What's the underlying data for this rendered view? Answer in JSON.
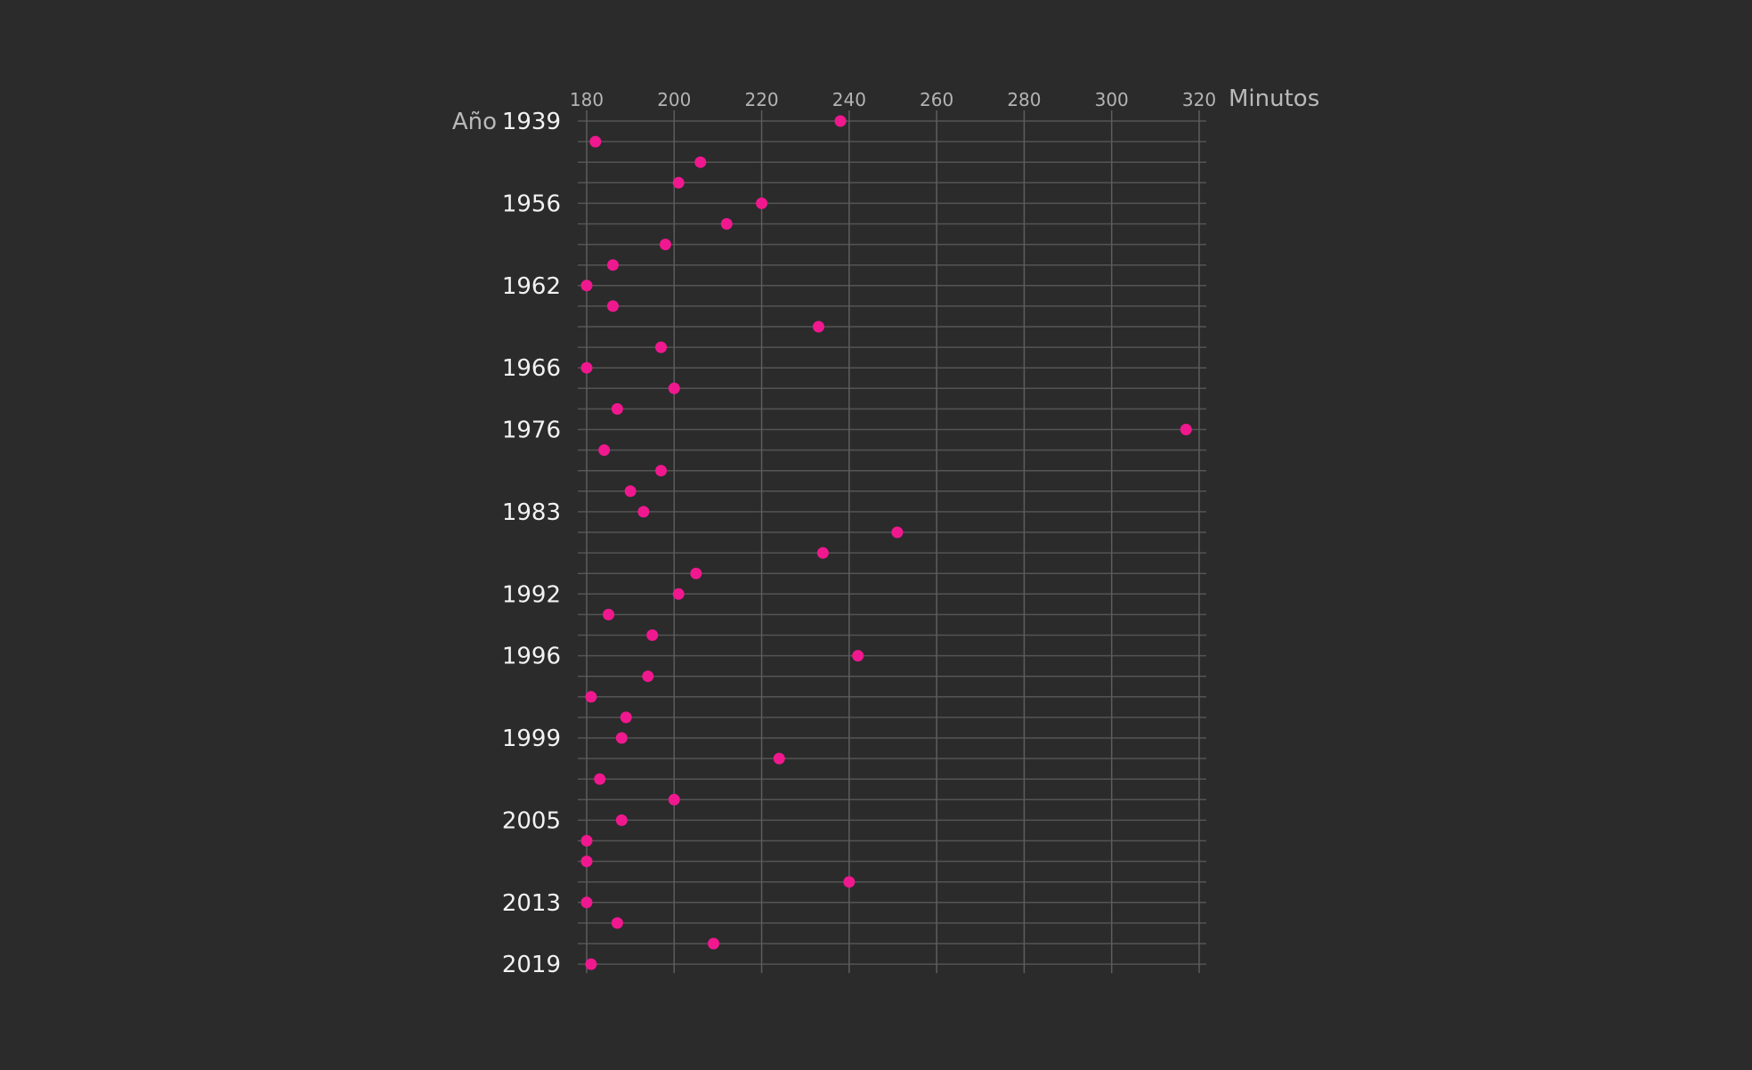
{
  "chart_data": {
    "type": "scatter",
    "x_axis_title": "Minutos",
    "y_axis_title": "Año",
    "x_ticks": [
      180,
      200,
      220,
      240,
      260,
      280,
      300,
      320
    ],
    "xlim": [
      180,
      320
    ],
    "y_tick_labels": [
      {
        "row": 0,
        "label": "1939"
      },
      {
        "row": 4,
        "label": "1956"
      },
      {
        "row": 8,
        "label": "1962"
      },
      {
        "row": 12,
        "label": "1966"
      },
      {
        "row": 15,
        "label": "1976"
      },
      {
        "row": 19,
        "label": "1983"
      },
      {
        "row": 23,
        "label": "1992"
      },
      {
        "row": 26,
        "label": "1996"
      },
      {
        "row": 30,
        "label": "1999"
      },
      {
        "row": 34,
        "label": "2005"
      },
      {
        "row": 38,
        "label": "2013"
      },
      {
        "row": 41,
        "label": "2019"
      }
    ],
    "values": [
      238,
      182,
      206,
      201,
      220,
      212,
      198,
      186,
      180,
      186,
      233,
      197,
      180,
      200,
      187,
      317,
      184,
      197,
      190,
      193,
      251,
      234,
      205,
      201,
      185,
      195,
      242,
      194,
      181,
      189,
      188,
      224,
      183,
      200,
      188,
      180,
      180,
      240,
      180,
      187,
      209,
      181
    ],
    "colors": {
      "background": "#2b2b2b",
      "point": "#f0188f",
      "grid": "#5a5a5a"
    }
  }
}
